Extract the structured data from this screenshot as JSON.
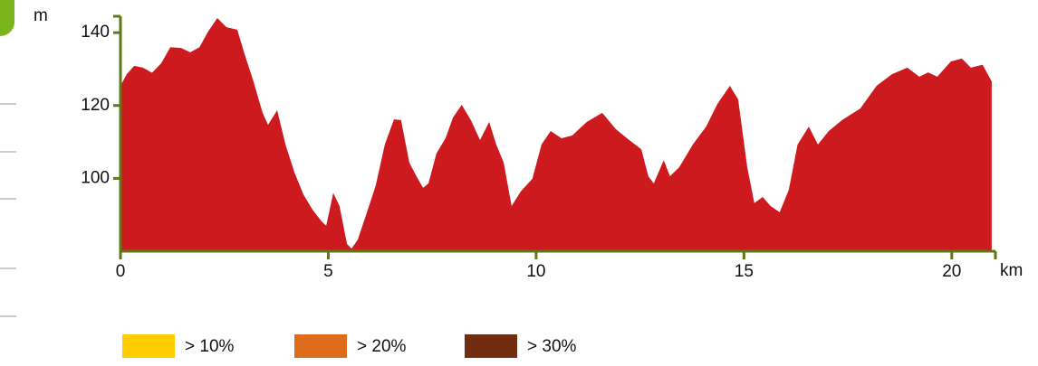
{
  "chart_data": {
    "type": "area",
    "y_label": "m",
    "x_label": "km",
    "color": "#cd1a1f",
    "x": [
      0,
      0.15,
      0.33,
      0.54,
      0.76,
      0.98,
      1.2,
      1.46,
      1.68,
      1.9,
      2.11,
      2.33,
      2.55,
      2.81,
      2.99,
      3.2,
      3.42,
      3.55,
      3.77,
      3.97,
      4.18,
      4.4,
      4.62,
      4.84,
      4.95,
      5.12,
      5.27,
      5.45,
      5.56,
      5.71,
      5.93,
      6.14,
      6.36,
      6.58,
      6.75,
      6.95,
      7.12,
      7.28,
      7.41,
      7.6,
      7.82,
      8.0,
      8.21,
      8.43,
      8.65,
      8.87,
      9.04,
      9.22,
      9.41,
      9.63,
      9.91,
      10.13,
      10.35,
      10.61,
      10.87,
      11.22,
      11.59,
      11.92,
      12.24,
      12.53,
      12.7,
      12.83,
      13.07,
      13.22,
      13.44,
      13.77,
      14.09,
      14.36,
      14.66,
      14.86,
      15.08,
      15.25,
      15.45,
      15.64,
      15.86,
      16.08,
      16.29,
      16.56,
      16.78,
      17.04,
      17.36,
      17.8,
      18.19,
      18.56,
      18.93,
      19.22,
      19.43,
      19.65,
      19.98,
      20.24,
      20.46,
      20.74,
      20.96
    ],
    "values": [
      125.4,
      128.6,
      130.9,
      130.4,
      129,
      131.6,
      136,
      135.8,
      134.6,
      136,
      140.3,
      144,
      141.5,
      140.8,
      134,
      126.6,
      118,
      114.7,
      118.7,
      109.3,
      101.8,
      95.6,
      91.4,
      88.2,
      87,
      96,
      92.4,
      82,
      80.7,
      83.2,
      90.7,
      98,
      109.3,
      116.2,
      116,
      104.3,
      100.6,
      97.4,
      98.6,
      106.8,
      111,
      116.7,
      120.2,
      116,
      110.5,
      115.5,
      109.3,
      104.3,
      92.4,
      96.4,
      99.9,
      109.3,
      113,
      111,
      111.8,
      115.5,
      118,
      113.5,
      110.5,
      108,
      100.6,
      98.6,
      105,
      100.6,
      103,
      109.3,
      114.2,
      120.4,
      125.4,
      121.7,
      103,
      93.2,
      94.9,
      92.4,
      90.7,
      96.9,
      109.3,
      114.2,
      109.3,
      113,
      116,
      119.2,
      125.4,
      128.6,
      130.4,
      127.9,
      129.1,
      127.9,
      132.1,
      132.9,
      130.4,
      131.2,
      126.6
    ],
    "xlim": [
      0,
      21.05
    ],
    "ylim": [
      80,
      144.5
    ],
    "xticks": [
      0,
      5,
      10,
      15,
      20
    ],
    "yticks": [
      100,
      120,
      140
    ],
    "legend": [
      {
        "label": "> 10%",
        "color": "#ffcc00"
      },
      {
        "label": "> 20%",
        "color": "#dd6d1c"
      },
      {
        "label": "> 30%",
        "color": "#722c10"
      }
    ]
  }
}
